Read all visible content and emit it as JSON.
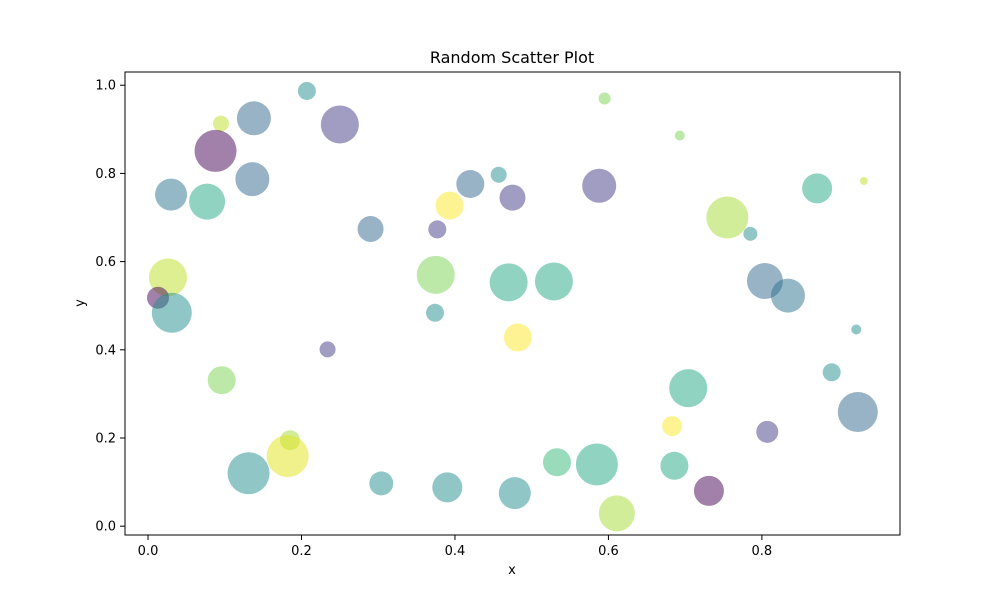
{
  "chart_data": {
    "type": "scatter",
    "title": "Random Scatter Plot",
    "xlabel": "x",
    "ylabel": "y",
    "xlim": [
      -0.03,
      0.98
    ],
    "ylim": [
      -0.02,
      1.03
    ],
    "xticks": [
      0.0,
      0.2,
      0.4,
      0.6,
      0.8
    ],
    "xtick_labels": [
      "0.0",
      "0.2",
      "0.4",
      "0.6",
      "0.8"
    ],
    "yticks": [
      0.0,
      0.2,
      0.4,
      0.6,
      0.8,
      1.0
    ],
    "ytick_labels": [
      "0.0",
      "0.2",
      "0.4",
      "0.6",
      "0.8",
      "1.0"
    ],
    "grid": false,
    "legend": false,
    "colormap": "viridis",
    "alpha": 0.5,
    "points": [
      {
        "x": 0.207,
        "y": 0.987,
        "r": 9,
        "color": "#21908d"
      },
      {
        "x": 0.095,
        "y": 0.913,
        "r": 8,
        "color": "#bddf26"
      },
      {
        "x": 0.138,
        "y": 0.925,
        "r": 17,
        "color": "#31688e"
      },
      {
        "x": 0.25,
        "y": 0.911,
        "r": 19,
        "color": "#443983"
      },
      {
        "x": 0.088,
        "y": 0.851,
        "r": 21,
        "color": "#440154"
      },
      {
        "x": 0.595,
        "y": 0.97,
        "r": 6,
        "color": "#7ad151"
      },
      {
        "x": 0.693,
        "y": 0.886,
        "r": 5,
        "color": "#7ad151"
      },
      {
        "x": 0.933,
        "y": 0.783,
        "r": 4,
        "color": "#bddf26"
      },
      {
        "x": 0.03,
        "y": 0.752,
        "r": 16,
        "color": "#2c728e"
      },
      {
        "x": 0.136,
        "y": 0.787,
        "r": 17,
        "color": "#31688e"
      },
      {
        "x": 0.077,
        "y": 0.736,
        "r": 18,
        "color": "#22a884"
      },
      {
        "x": 0.457,
        "y": 0.797,
        "r": 8,
        "color": "#21908d"
      },
      {
        "x": 0.42,
        "y": 0.776,
        "r": 14,
        "color": "#31688e"
      },
      {
        "x": 0.475,
        "y": 0.745,
        "r": 13,
        "color": "#443983"
      },
      {
        "x": 0.588,
        "y": 0.772,
        "r": 17,
        "color": "#443983"
      },
      {
        "x": 0.872,
        "y": 0.766,
        "r": 15,
        "color": "#22a884"
      },
      {
        "x": 0.755,
        "y": 0.7,
        "r": 21,
        "color": "#a5db36"
      },
      {
        "x": 0.393,
        "y": 0.727,
        "r": 14,
        "color": "#fde725"
      },
      {
        "x": 0.29,
        "y": 0.674,
        "r": 13,
        "color": "#31688e"
      },
      {
        "x": 0.377,
        "y": 0.673,
        "r": 9,
        "color": "#443983"
      },
      {
        "x": 0.785,
        "y": 0.663,
        "r": 7,
        "color": "#21908d"
      },
      {
        "x": 0.026,
        "y": 0.564,
        "r": 19,
        "color": "#bddf26"
      },
      {
        "x": 0.375,
        "y": 0.57,
        "r": 19,
        "color": "#7ad151"
      },
      {
        "x": 0.47,
        "y": 0.553,
        "r": 19,
        "color": "#22a884"
      },
      {
        "x": 0.529,
        "y": 0.555,
        "r": 19,
        "color": "#22a884"
      },
      {
        "x": 0.804,
        "y": 0.556,
        "r": 18,
        "color": "#31688e"
      },
      {
        "x": 0.834,
        "y": 0.523,
        "r": 17,
        "color": "#2c728e"
      },
      {
        "x": 0.013,
        "y": 0.518,
        "r": 11,
        "color": "#440154"
      },
      {
        "x": 0.031,
        "y": 0.484,
        "r": 20,
        "color": "#21908d"
      },
      {
        "x": 0.374,
        "y": 0.484,
        "r": 9,
        "color": "#21908d"
      },
      {
        "x": 0.923,
        "y": 0.446,
        "r": 5,
        "color": "#21908d"
      },
      {
        "x": 0.234,
        "y": 0.401,
        "r": 8,
        "color": "#443983"
      },
      {
        "x": 0.482,
        "y": 0.428,
        "r": 14,
        "color": "#fde725"
      },
      {
        "x": 0.096,
        "y": 0.331,
        "r": 14,
        "color": "#7ad151"
      },
      {
        "x": 0.891,
        "y": 0.349,
        "r": 9,
        "color": "#21908d"
      },
      {
        "x": 0.704,
        "y": 0.313,
        "r": 19,
        "color": "#22a884"
      },
      {
        "x": 0.925,
        "y": 0.259,
        "r": 20,
        "color": "#31688e"
      },
      {
        "x": 0.683,
        "y": 0.227,
        "r": 10,
        "color": "#fde725"
      },
      {
        "x": 0.807,
        "y": 0.214,
        "r": 11,
        "color": "#443983"
      },
      {
        "x": 0.185,
        "y": 0.195,
        "r": 10,
        "color": "#a5db36"
      },
      {
        "x": 0.182,
        "y": 0.159,
        "r": 21,
        "color": "#e2e418"
      },
      {
        "x": 0.131,
        "y": 0.12,
        "r": 21,
        "color": "#21908d"
      },
      {
        "x": 0.304,
        "y": 0.097,
        "r": 12,
        "color": "#21908d"
      },
      {
        "x": 0.39,
        "y": 0.088,
        "r": 15,
        "color": "#21908d"
      },
      {
        "x": 0.478,
        "y": 0.075,
        "r": 16,
        "color": "#21908d"
      },
      {
        "x": 0.533,
        "y": 0.145,
        "r": 14,
        "color": "#35b779"
      },
      {
        "x": 0.585,
        "y": 0.14,
        "r": 21,
        "color": "#22a884"
      },
      {
        "x": 0.686,
        "y": 0.137,
        "r": 14,
        "color": "#22a884"
      },
      {
        "x": 0.731,
        "y": 0.08,
        "r": 15,
        "color": "#440154"
      },
      {
        "x": 0.611,
        "y": 0.029,
        "r": 18,
        "color": "#a5db36"
      }
    ]
  }
}
